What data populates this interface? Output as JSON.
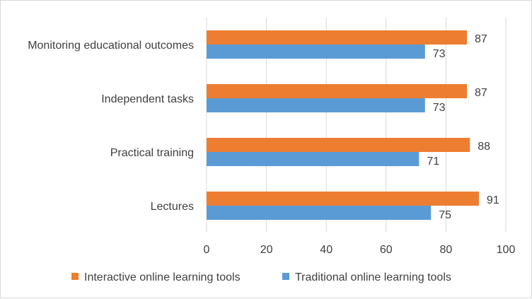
{
  "chart_data": {
    "type": "bar",
    "orientation": "horizontal",
    "categories": [
      "Monitoring educational outcomes",
      "Independent tasks",
      "Practical training",
      "Lectures"
    ],
    "series": [
      {
        "name": "Interactive online learning tools",
        "color": "#ED7D31",
        "values": [
          87,
          87,
          88,
          91
        ]
      },
      {
        "name": "Traditional online learning tools",
        "color": "#5B9BD5",
        "values": [
          73,
          73,
          71,
          75
        ]
      }
    ],
    "xlim": [
      0,
      100
    ],
    "xticks": [
      "0",
      "20",
      "40",
      "60",
      "80",
      "100"
    ],
    "tick_values": [
      0,
      20,
      40,
      60,
      80,
      100
    ],
    "grid": true,
    "legend_position": "bottom",
    "data_labels": true
  }
}
